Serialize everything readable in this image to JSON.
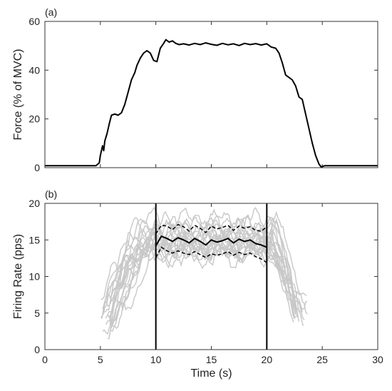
{
  "chart_data": [
    {
      "type": "line",
      "panel_label": "(a)",
      "ylabel": "Force (% of MVC)",
      "xlabel": "",
      "xlim": [
        0,
        30
      ],
      "ylim": [
        0,
        60
      ],
      "xticks": [
        0,
        5,
        10,
        15,
        20,
        25,
        30
      ],
      "yticks": [
        0,
        20,
        40,
        60
      ],
      "ytick_labels": [
        "0",
        "20",
        "40",
        "60"
      ],
      "show_xtick_labels": false,
      "grid": false,
      "series": [
        {
          "color": "#000000",
          "style": "solid",
          "x": [
            0,
            4.6,
            4.9,
            5.0,
            5.2,
            5.3,
            5.4,
            5.6,
            5.8,
            6.0,
            6.3,
            6.6,
            6.9,
            7.2,
            7.5,
            7.8,
            8.1,
            8.3,
            8.6,
            8.9,
            9.2,
            9.5,
            9.8,
            10.1,
            10.4,
            10.7,
            10.9,
            11.2,
            11.5,
            11.8,
            12.1,
            12.5,
            13.0,
            13.5,
            14.0,
            14.5,
            15.0,
            15.5,
            16.0,
            16.5,
            17.0,
            17.5,
            18.0,
            18.5,
            19.0,
            19.5,
            20.0,
            20.4,
            20.8,
            21.1,
            21.4,
            21.7,
            22.0,
            22.3,
            22.6,
            22.9,
            23.2,
            23.5,
            23.8,
            24.1,
            24.4,
            24.7,
            24.9,
            25.2,
            30
          ],
          "y": [
            0.8,
            0.8,
            2.0,
            5.0,
            9.0,
            7.0,
            11.0,
            14.0,
            18.0,
            21.5,
            22.0,
            21.5,
            22.5,
            26.0,
            31.0,
            36.0,
            39.0,
            42.0,
            45.0,
            47.0,
            48.0,
            47.0,
            44.0,
            43.5,
            49.0,
            51.0,
            52.5,
            51.5,
            52.0,
            51.0,
            50.5,
            50.8,
            50.3,
            51.0,
            50.5,
            51.2,
            50.6,
            50.2,
            51.0,
            50.4,
            50.8,
            50.1,
            51.0,
            50.5,
            50.9,
            50.3,
            50.8,
            49.5,
            49.0,
            47.0,
            43.0,
            38.0,
            37.0,
            36.0,
            33.5,
            29.0,
            28.0,
            22.0,
            16.0,
            10.0,
            5.0,
            1.5,
            0.3,
            0.8,
            0.8
          ]
        }
      ]
    },
    {
      "type": "line",
      "panel_label": "(b)",
      "ylabel": "Firing Rate (pps)",
      "xlabel": "Time (s)",
      "xlim": [
        0,
        30
      ],
      "ylim": [
        0,
        20
      ],
      "xticks": [
        0,
        5,
        10,
        15,
        20,
        25,
        30
      ],
      "xtick_labels": [
        "0",
        "5",
        "10",
        "15",
        "20",
        "25",
        "30"
      ],
      "yticks": [
        0,
        5,
        10,
        15,
        20
      ],
      "ytick_labels": [
        "0",
        "5",
        "10",
        "15",
        "20"
      ],
      "grid": false,
      "vlines": [
        10,
        20
      ],
      "mean_series": {
        "color": "#000000",
        "style": "solid",
        "x": [
          10.0,
          10.5,
          11.0,
          11.5,
          12.0,
          12.5,
          13.0,
          13.5,
          14.0,
          14.5,
          15.0,
          15.5,
          16.0,
          16.5,
          17.0,
          17.5,
          18.0,
          18.5,
          19.0,
          19.5,
          20.0
        ],
        "y": [
          14.2,
          15.5,
          15.2,
          14.8,
          15.3,
          15.0,
          14.6,
          15.2,
          14.8,
          14.3,
          15.0,
          14.7,
          14.9,
          15.2,
          14.6,
          15.1,
          14.8,
          15.0,
          14.5,
          14.3,
          14.0
        ]
      },
      "sd_upper": {
        "color": "#000000",
        "style": "dashed",
        "x": [
          10.0,
          10.5,
          11.0,
          11.5,
          12.0,
          12.5,
          13.0,
          13.5,
          14.0,
          14.5,
          15.0,
          15.5,
          16.0,
          16.5,
          17.0,
          17.5,
          18.0,
          18.5,
          19.0,
          19.5,
          20.0
        ],
        "y": [
          15.8,
          17.0,
          16.9,
          16.4,
          17.1,
          16.8,
          16.2,
          17.0,
          16.6,
          16.0,
          16.9,
          16.5,
          16.7,
          17.0,
          16.3,
          16.9,
          16.6,
          16.8,
          16.3,
          16.2,
          16.8
        ]
      },
      "sd_lower": {
        "color": "#000000",
        "style": "dashed",
        "x": [
          10.0,
          10.5,
          11.0,
          11.5,
          12.0,
          12.5,
          13.0,
          13.5,
          14.0,
          14.5,
          15.0,
          15.5,
          16.0,
          16.5,
          17.0,
          17.5,
          18.0,
          18.5,
          19.0,
          19.5,
          20.0
        ],
        "y": [
          12.6,
          14.0,
          13.5,
          13.2,
          13.5,
          13.2,
          13.0,
          13.4,
          13.0,
          12.6,
          13.1,
          12.9,
          13.1,
          13.4,
          12.9,
          13.3,
          13.0,
          13.2,
          12.7,
          12.4,
          11.9
        ]
      },
      "motor_units": {
        "color": "#c8c8c8",
        "count": 20,
        "start_x_range": [
          5.0,
          6.3
        ],
        "end_x_range": [
          22.0,
          23.8
        ],
        "start_y_range": [
          1.5,
          8.0
        ],
        "plateau_y_range": [
          11.5,
          19.0
        ],
        "end_y_range": [
          3.5,
          6.0
        ]
      }
    }
  ]
}
